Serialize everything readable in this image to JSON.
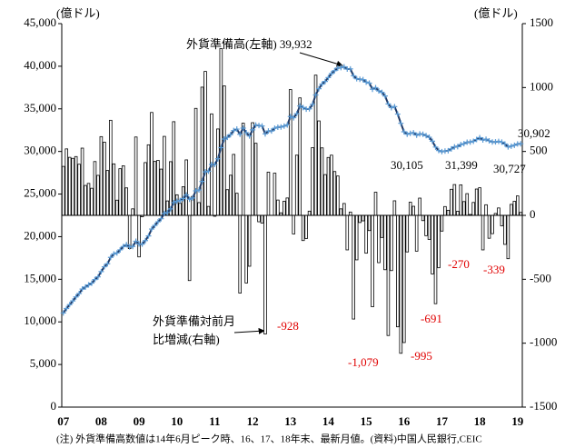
{
  "chart_data": {
    "type": "combo",
    "y_unit": "(億ドル)",
    "y2_unit": "(億ドル)",
    "note": "(注) 外貨準備高数値は14年6月ピーク時、16、17、18年末、最新月値。(資料)中国人民銀行,CEIC",
    "ylim": [
      0,
      45000
    ],
    "yticks": [
      0,
      {
        "value": 5000,
        "label": "5,000"
      },
      {
        "value": 10000,
        "label": "10,000"
      },
      {
        "value": 15000,
        "label": "15,000"
      },
      {
        "value": 20000,
        "label": "20,000"
      },
      {
        "value": 25000,
        "label": "25,000"
      },
      {
        "value": 30000,
        "label": "30,000"
      },
      {
        "value": 35000,
        "label": "35,000"
      },
      {
        "value": 40000,
        "label": "40,000"
      },
      {
        "value": 45000,
        "label": "45,000"
      }
    ],
    "y2lim": [
      -1500,
      1500
    ],
    "y2ticks": [
      -1500,
      -1000,
      -500,
      0,
      500,
      1000,
      1500
    ],
    "categories": [
      "07",
      null,
      null,
      null,
      null,
      null,
      null,
      null,
      null,
      null,
      null,
      null,
      "08",
      null,
      null,
      null,
      null,
      null,
      null,
      null,
      null,
      null,
      null,
      null,
      "09",
      null,
      null,
      null,
      null,
      null,
      null,
      null,
      null,
      null,
      null,
      null,
      "10",
      null,
      null,
      null,
      null,
      null,
      null,
      null,
      null,
      null,
      null,
      null,
      "11",
      null,
      null,
      null,
      null,
      null,
      null,
      null,
      null,
      null,
      null,
      null,
      "12",
      null,
      null,
      null,
      null,
      null,
      null,
      null,
      null,
      null,
      null,
      null,
      "13",
      null,
      null,
      null,
      null,
      null,
      null,
      null,
      null,
      null,
      null,
      null,
      "14",
      null,
      null,
      null,
      null,
      null,
      null,
      null,
      null,
      null,
      null,
      null,
      "15",
      null,
      null,
      null,
      null,
      null,
      null,
      null,
      null,
      null,
      null,
      null,
      "16",
      null,
      null,
      null,
      null,
      null,
      null,
      null,
      null,
      null,
      null,
      null,
      "17",
      null,
      null,
      null,
      null,
      null,
      null,
      null,
      null,
      null,
      null,
      null,
      "18",
      null,
      null,
      null,
      null,
      null,
      null,
      null,
      null,
      null,
      null,
      null,
      "19",
      null
    ],
    "series": [
      {
        "name": "外貨準備対前月比増減(右軸)",
        "type": "bar",
        "axis": "y2",
        "color": "#ffffff",
        "values": [
          383,
          520,
          454,
          446,
          460,
          400,
          526,
          234,
          250,
          212,
          421,
          313,
          616,
          573,
          351,
          744,
          403,
          119,
          365,
          388,
          215,
          -260,
          51,
          613,
          -325,
          -11,
          413,
          552,
          805,
          422,
          430,
          362,
          618,
          113,
          420,
          733,
          161,
          94,
          224,
          434,
          -510,
          148,
          837,
          100,
          1003,
          1126,
          70,
          794,
          -7,
          676,
          1305,
          1013,
          201,
          314,
          477,
          173,
          -608,
          721,
          -529,
          -398,
          725,
          564,
          -50,
          -60,
          -928,
          338,
          0,
          330,
          120,
          20,
          110,
          136,
          984,
          -145,
          471,
          919,
          -197,
          -181,
          33,
          530,
          1097,
          739,
          528,
          319,
          453,
          471,
          343,
          308,
          51,
          93,
          -270,
          26,
          -811,
          -348,
          -56,
          -43,
          -296,
          -119,
          -715,
          181,
          -370,
          -173,
          -425,
          -940,
          -432,
          114,
          -872,
          -1079,
          -995,
          -286,
          103,
          71,
          -280,
          135,
          -41,
          -159,
          -188,
          -458,
          -691,
          -410,
          -123,
          69,
          40,
          204,
          241,
          32,
          239,
          108,
          170,
          7,
          101,
          206,
          216,
          -270,
          83,
          -179,
          -143,
          15,
          58,
          -82,
          -227,
          -339,
          86,
          110,
          152,
          23
        ]
      },
      {
        "name": "外貨準備高(左軸)",
        "type": "line",
        "axis": "y",
        "color": "#1f3864",
        "marker_color": "#5b9bd5",
        "values": [
          11046,
          11566,
          12020,
          12466,
          12926,
          13326,
          13852,
          14086,
          14336,
          14548,
          14969,
          15282,
          15898,
          16471,
          16822,
          17566,
          17969,
          18088,
          18453,
          18841,
          19056,
          18796,
          18847,
          19460,
          19135,
          19124,
          19537,
          20089,
          20894,
          21316,
          21746,
          22108,
          22726,
          22839,
          23259,
          23992,
          24153,
          24247,
          24471,
          24905,
          24395,
          24543,
          25380,
          25480,
          26483,
          27609,
          27679,
          28473,
          28466,
          29142,
          30447,
          31460,
          31661,
          31975,
          32452,
          32625,
          32017,
          32738,
          32209,
          31811,
          32536,
          33100,
          33050,
          32990,
          32062,
          32400,
          32400,
          32730,
          32850,
          32870,
          32980,
          33116,
          34100,
          33955,
          34426,
          35345,
          35148,
          34967,
          35000,
          35530,
          36627,
          37366,
          37894,
          38213,
          38666,
          39137,
          39480,
          39788,
          39839,
          39932,
          39662,
          39688,
          38877,
          38529,
          38473,
          38430,
          38134,
          38015,
          37300,
          37481,
          37111,
          36938,
          36513,
          35573,
          35141,
          35255,
          34383,
          33304,
          32309,
          32023,
          32126,
          32197,
          31917,
          32052,
          32011,
          31852,
          31664,
          31206,
          30515,
          30105,
          29982,
          30051,
          30091,
          30295,
          30536,
          30568,
          30807,
          30915,
          31085,
          31092,
          31193,
          31399,
          31615,
          31345,
          31428,
          31249,
          31106,
          31121,
          31179,
          31097,
          30870,
          30531,
          30617,
          30727,
          30879,
          30902
        ]
      }
    ],
    "annotations": [
      {
        "text": "外貨準備高(左軸) 39,932"
      },
      {
        "text": "外貨準備対前月"
      },
      {
        "text": "比増減(右軸)"
      },
      {
        "text": "30,105"
      },
      {
        "text": "31,399"
      },
      {
        "text": "30,727"
      },
      {
        "text": "30,902"
      },
      {
        "text": "-928",
        "color": "red"
      },
      {
        "text": "-1,079",
        "color": "red"
      },
      {
        "text": "-995",
        "color": "red"
      },
      {
        "text": "-691",
        "color": "red"
      },
      {
        "text": "-270",
        "color": "red"
      },
      {
        "text": "-339",
        "color": "red"
      }
    ]
  }
}
